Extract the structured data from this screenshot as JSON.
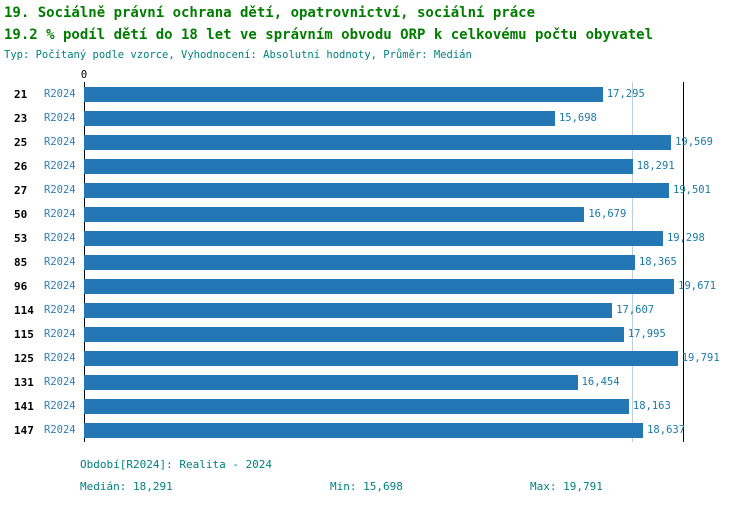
{
  "title": {
    "line1": "19. Sociálně právní ochrana dětí, opatrovnictví, sociální práce",
    "line2": "19.2 % podíl dětí do 18 let ve správním obvodu ORP k celkovému počtu obyvatel",
    "meta": "Typ: Počítaný podle vzorce, Vyhodnocení: Absolutní hodnoty, Průměr: Medián"
  },
  "chart_data": {
    "type": "bar",
    "orientation": "horizontal",
    "categories": [
      "21",
      "23",
      "25",
      "26",
      "27",
      "50",
      "53",
      "85",
      "96",
      "114",
      "115",
      "125",
      "131",
      "141",
      "147"
    ],
    "series_label": "R2024",
    "values": [
      17295,
      15698,
      19569,
      18291,
      19501,
      16679,
      19298,
      18365,
      19671,
      17607,
      17995,
      19791,
      16454,
      18163,
      18637
    ],
    "value_labels": [
      "17,295",
      "15,698",
      "19,569",
      "18,291",
      "19,501",
      "16,679",
      "19,298",
      "18,365",
      "19,671",
      "17,607",
      "17,995",
      "19,791",
      "16,454",
      "18,163",
      "18,637"
    ],
    "xlim": [
      0,
      20000
    ],
    "x_tick_labels": [
      "0"
    ],
    "median_value": 18291,
    "grid": "off",
    "legend": "none",
    "bar_color": "#2277b4"
  },
  "footer": {
    "period": "Období[R2024]: Realita - 2024",
    "median": "Medián: 18,291",
    "min": "Min: 15,698",
    "max": "Max: 19,791"
  },
  "colors": {
    "title_green": "#007c00",
    "meta_teal": "#008080",
    "bar_blue": "#2277b4",
    "series_label_blue": "#2e7fb8",
    "value_label_blue": "#1b7aa6",
    "median_line": "#b9cfe0"
  }
}
